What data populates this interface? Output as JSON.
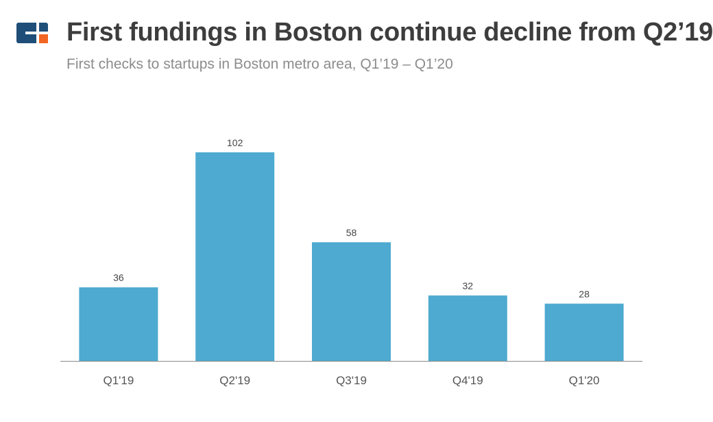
{
  "header": {
    "title": "First fundings in Boston continue decline from Q2’19",
    "subtitle": "First checks to startups in Boston metro area, Q1’19 – Q1’20",
    "logo_colors": {
      "blue": "#1f4e79",
      "orange": "#f26522"
    }
  },
  "chart_data": {
    "type": "bar",
    "categories": [
      "Q1'19",
      "Q2'19",
      "Q3'19",
      "Q4'19",
      "Q1'20"
    ],
    "values": [
      36,
      102,
      58,
      32,
      28
    ],
    "title": "First fundings in Boston continue decline from Q2’19",
    "subtitle": "First checks to startups in Boston metro area, Q1’19 – Q1’20",
    "ylim": [
      0,
      102
    ],
    "grid": false,
    "bar_color": "#4eaad0",
    "data_labels": true
  }
}
